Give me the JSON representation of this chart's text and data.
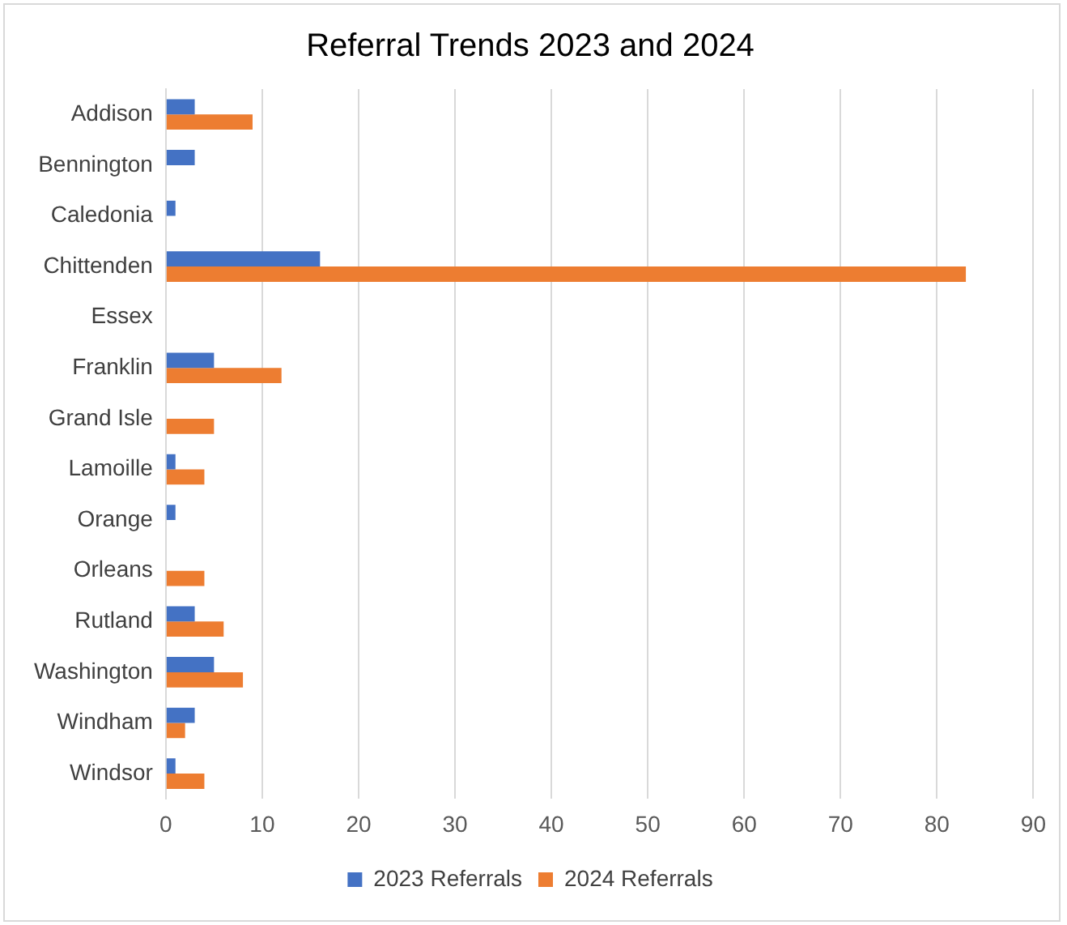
{
  "chart_data": {
    "type": "bar",
    "orientation": "horizontal",
    "title": "Referral Trends 2023 and 2024",
    "categories": [
      "Addison",
      "Bennington",
      "Caledonia",
      "Chittenden",
      "Essex",
      "Franklin",
      "Grand Isle",
      "Lamoille",
      "Orange",
      "Orleans",
      "Rutland",
      "Washington",
      "Windham",
      "Windsor"
    ],
    "series": [
      {
        "name": "2023 Referrals",
        "color": "#4472c4",
        "values": [
          3,
          3,
          1,
          16,
          0,
          5,
          0,
          1,
          1,
          0,
          3,
          5,
          3,
          1
        ]
      },
      {
        "name": "2024 Referrals",
        "color": "#ed7d31",
        "values": [
          9,
          0,
          0,
          83,
          0,
          12,
          5,
          4,
          0,
          4,
          6,
          8,
          2,
          4
        ]
      }
    ],
    "xlim": [
      0,
      90
    ],
    "xticks": [
      0,
      10,
      20,
      30,
      40,
      50,
      60,
      70,
      80,
      90
    ],
    "grid": "x",
    "legend": "bottom"
  }
}
